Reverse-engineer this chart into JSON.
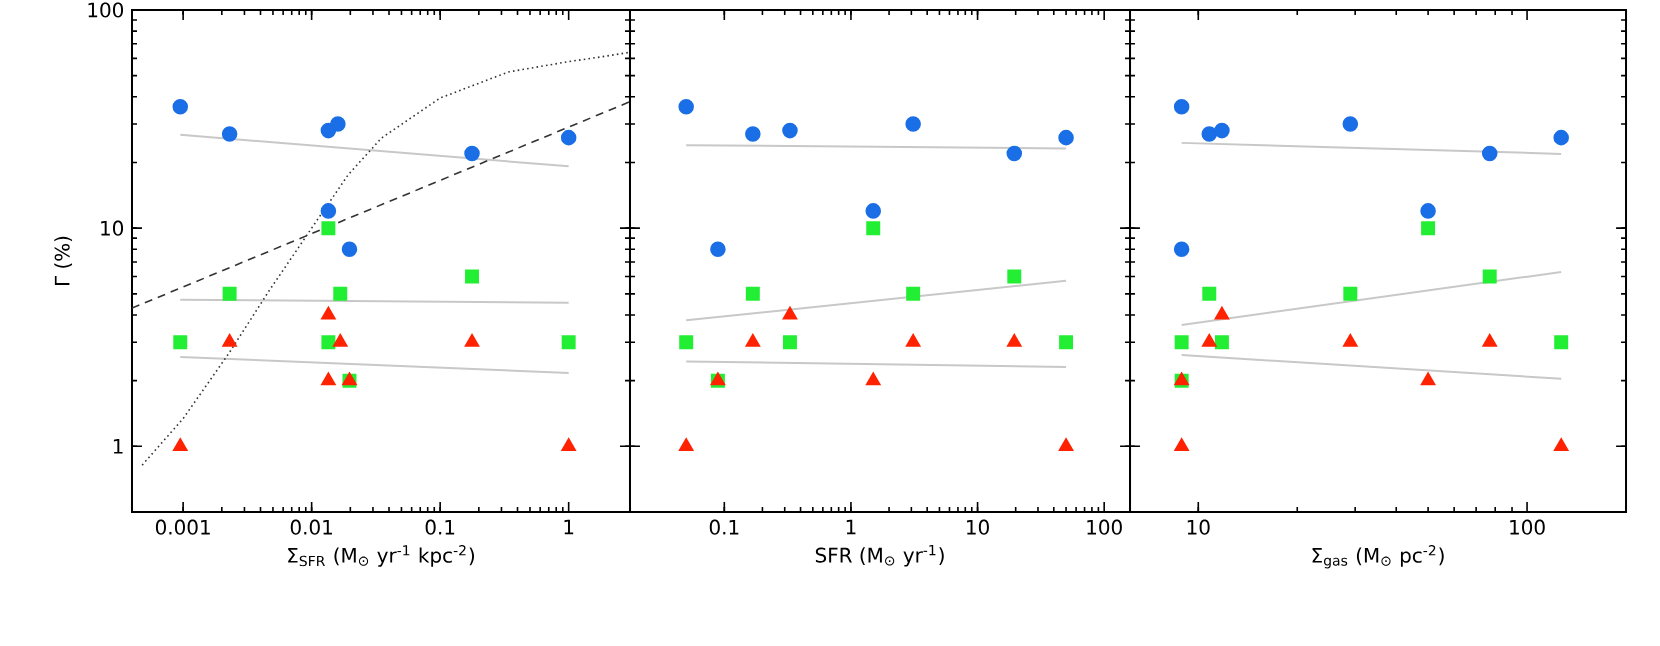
{
  "chart_data": [
    {
      "type": "scatter",
      "xlabel": "Σ$_{SFR}$ (M$_{⊙}$ yr$^{-1}$ kpc$^{-2}$)",
      "ylabel": "Γ (%)",
      "log": "xy",
      "xlim": [
        0.0004,
        3
      ],
      "ylim": [
        0.5,
        100
      ],
      "xticks": [
        0.001,
        0.01,
        0.1,
        1
      ],
      "yticks": [
        1,
        10,
        100
      ],
      "series": [
        {
          "marker": "circle",
          "color": "#1a6ee6",
          "x": [
            0.00095,
            0.0023,
            0.0135,
            0.016,
            0.0135,
            0.0197,
            0.177,
            1
          ],
          "values": [
            36,
            27,
            28,
            30,
            12,
            8,
            22,
            26
          ]
        },
        {
          "marker": "square",
          "color": "#22ee33",
          "x": [
            0.00095,
            0.0023,
            0.0135,
            0.0135,
            0.0167,
            0.0197,
            0.177,
            1
          ],
          "values": [
            3,
            5,
            10,
            3,
            5,
            2,
            6,
            3
          ]
        },
        {
          "marker": "triangle",
          "color": "#ff2200",
          "x": [
            0.00095,
            0.0023,
            0.0135,
            0.0135,
            0.0167,
            0.0197,
            0.177,
            1
          ],
          "values": [
            1,
            3,
            4,
            2,
            3,
            2,
            3,
            1
          ]
        },
        {
          "type": "line",
          "line_style": "solid",
          "color": "#c8c8c8",
          "x": [
            0.00095,
            1
          ],
          "values": [
            26.8,
            19.2
          ]
        },
        {
          "type": "line",
          "line_style": "solid",
          "color": "#c8c8c8",
          "x": [
            0.00095,
            1
          ],
          "values": [
            4.7,
            4.55
          ]
        },
        {
          "type": "line",
          "line_style": "solid",
          "color": "#c8c8c8",
          "x": [
            0.00095,
            1
          ],
          "values": [
            2.57,
            2.17
          ]
        },
        {
          "type": "line",
          "line_style": "dashed",
          "color": "#333333",
          "x": [
            0.0004,
            3
          ],
          "values": [
            4.3,
            38
          ]
        },
        {
          "type": "line",
          "line_style": "dotted",
          "color": "#333333",
          "x": [
            0.00048,
            0.001,
            0.0023,
            0.0046,
            0.01,
            0.0193,
            0.035,
            0.1,
            0.34,
            1,
            1.8,
            3
          ],
          "values": [
            0.82,
            1.34,
            2.7,
            5.1,
            10,
            17.6,
            25.9,
            39.5,
            52,
            58,
            61,
            64
          ]
        }
      ]
    },
    {
      "type": "scatter",
      "xlabel": "SFR (M$_{⊙}$ yr$^{-1}$)",
      "log": "xy",
      "xlim": [
        0.018,
        160
      ],
      "ylim": [
        0.5,
        100
      ],
      "xticks": [
        0.1,
        1,
        10,
        100
      ],
      "yticks": [
        1,
        10,
        100
      ],
      "tick_labels": "x",
      "series": [
        {
          "marker": "circle",
          "color": "#1a6ee6",
          "x": [
            0.05,
            0.089,
            0.168,
            0.33,
            1.5,
            3.1,
            19.5,
            50
          ],
          "values": [
            36,
            8,
            27,
            28,
            12,
            30,
            22,
            26
          ]
        },
        {
          "marker": "square",
          "color": "#22ee33",
          "x": [
            0.05,
            0.089,
            0.168,
            0.33,
            1.5,
            3.1,
            19.5,
            50
          ],
          "values": [
            3,
            2,
            5,
            3,
            10,
            5,
            6,
            3
          ]
        },
        {
          "marker": "triangle",
          "color": "#ff2200",
          "x": [
            0.05,
            0.089,
            0.168,
            0.33,
            1.5,
            3.1,
            19.5,
            50
          ],
          "values": [
            1,
            2,
            3,
            4,
            2,
            3,
            3,
            1
          ]
        },
        {
          "type": "line",
          "line_style": "solid",
          "color": "#c8c8c8",
          "x": [
            0.05,
            50
          ],
          "values": [
            24,
            23.2
          ]
        },
        {
          "type": "line",
          "line_style": "solid",
          "color": "#c8c8c8",
          "x": [
            0.05,
            50
          ],
          "values": [
            3.78,
            5.74
          ]
        },
        {
          "type": "line",
          "line_style": "solid",
          "color": "#c8c8c8",
          "x": [
            0.05,
            50
          ],
          "values": [
            2.45,
            2.31
          ]
        }
      ]
    },
    {
      "type": "scatter",
      "xlabel": "Σ$_{gas}$ (M$_{⊙}$ pc$^{-2}$)",
      "log": "xy",
      "xlim": [
        6.2,
        200
      ],
      "ylim": [
        0.5,
        100
      ],
      "xticks": [
        10,
        100
      ],
      "yticks": [
        1,
        10,
        100
      ],
      "tick_labels": "x",
      "series": [
        {
          "marker": "circle",
          "color": "#1a6ee6",
          "x": [
            8.9,
            8.9,
            10.8,
            11.8,
            29,
            50,
            77,
            127
          ],
          "values": [
            36,
            8,
            27,
            28,
            30,
            12,
            22,
            26
          ]
        },
        {
          "marker": "square",
          "color": "#22ee33",
          "x": [
            8.9,
            8.9,
            10.8,
            11.8,
            29,
            50,
            77,
            127
          ],
          "values": [
            3,
            2,
            5,
            3,
            5,
            10,
            6,
            3
          ]
        },
        {
          "marker": "triangle",
          "color": "#ff2200",
          "x": [
            8.9,
            8.9,
            10.8,
            11.8,
            29,
            50,
            77,
            127
          ],
          "values": [
            1,
            2,
            3,
            4,
            3,
            2,
            3,
            1
          ]
        },
        {
          "type": "line",
          "line_style": "solid",
          "color": "#c8c8c8",
          "x": [
            8.9,
            127
          ],
          "values": [
            24.6,
            21.9
          ]
        },
        {
          "type": "line",
          "line_style": "solid",
          "color": "#c8c8c8",
          "x": [
            8.9,
            127
          ],
          "values": [
            3.6,
            6.3
          ]
        },
        {
          "type": "line",
          "line_style": "solid",
          "color": "#c8c8c8",
          "x": [
            8.9,
            127
          ],
          "values": [
            2.62,
            2.04
          ]
        }
      ]
    }
  ]
}
